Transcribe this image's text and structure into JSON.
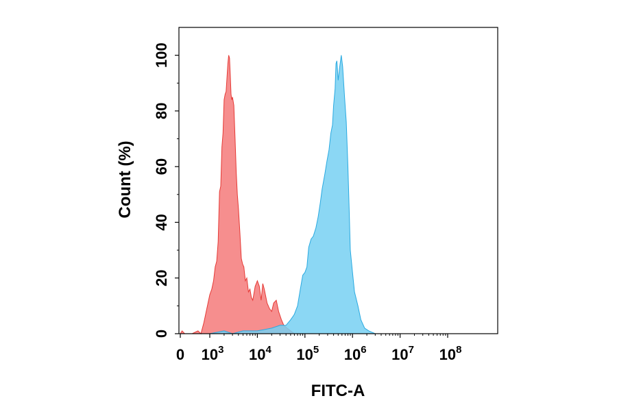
{
  "chart_data": {
    "type": "area",
    "title": "",
    "xlabel": "FITC-A",
    "ylabel": "Count (%)",
    "x_scale": "biexponential",
    "xlim": [
      -100,
      100000000
    ],
    "ylim": [
      0,
      110
    ],
    "grid": false,
    "x_ticks": [
      {
        "base": "0",
        "exp": "",
        "value": 0
      },
      {
        "base": "10",
        "exp": "3",
        "value": 1000
      },
      {
        "base": "10",
        "exp": "4",
        "value": 10000
      },
      {
        "base": "10",
        "exp": "5",
        "value": 100000
      },
      {
        "base": "10",
        "exp": "6",
        "value": 1000000
      },
      {
        "base": "10",
        "exp": "7",
        "value": 10000000
      },
      {
        "base": "10",
        "exp": "8",
        "value": 100000000
      }
    ],
    "y_ticks": [
      "0",
      "20",
      "40",
      "60",
      "80",
      "100"
    ],
    "series": [
      {
        "color": "#f47a7a",
        "stroke": "#e53935",
        "points": [
          [
            0,
            0
          ],
          [
            60,
            1
          ],
          [
            150,
            0
          ],
          [
            400,
            0
          ],
          [
            600,
            1
          ],
          [
            700,
            0
          ],
          [
            800,
            4
          ],
          [
            900,
            9
          ],
          [
            1000,
            14
          ],
          [
            1100,
            16
          ],
          [
            1200,
            19
          ],
          [
            1300,
            24
          ],
          [
            1400,
            26
          ],
          [
            1500,
            33
          ],
          [
            1600,
            51
          ],
          [
            1700,
            53
          ],
          [
            1800,
            67
          ],
          [
            1900,
            72
          ],
          [
            2000,
            84
          ],
          [
            2100,
            86
          ],
          [
            2200,
            87
          ],
          [
            2300,
            92
          ],
          [
            2400,
            97
          ],
          [
            2500,
            100
          ],
          [
            2600,
            99
          ],
          [
            2700,
            93
          ],
          [
            2800,
            86
          ],
          [
            2900,
            84
          ],
          [
            3000,
            85
          ],
          [
            3200,
            82
          ],
          [
            3400,
            70
          ],
          [
            3600,
            58
          ],
          [
            3800,
            50
          ],
          [
            4000,
            45
          ],
          [
            4300,
            36
          ],
          [
            4600,
            27
          ],
          [
            4900,
            25
          ],
          [
            5200,
            24
          ],
          [
            5600,
            19
          ],
          [
            6000,
            20
          ],
          [
            6500,
            15
          ],
          [
            7000,
            16
          ],
          [
            7500,
            13
          ],
          [
            8000,
            12
          ],
          [
            9000,
            17
          ],
          [
            10000,
            19
          ],
          [
            11000,
            17
          ],
          [
            12000,
            12
          ],
          [
            13000,
            18
          ],
          [
            14000,
            16
          ],
          [
            16000,
            11
          ],
          [
            18000,
            9
          ],
          [
            20000,
            8
          ],
          [
            22000,
            11
          ],
          [
            25000,
            12
          ],
          [
            28000,
            8
          ],
          [
            32000,
            5
          ],
          [
            36000,
            3
          ],
          [
            42000,
            2
          ],
          [
            50000,
            1
          ],
          [
            60000,
            0
          ]
        ]
      },
      {
        "color": "#77d0f2",
        "stroke": "#29a9e0",
        "points": [
          [
            1000,
            0
          ],
          [
            2000,
            1
          ],
          [
            3000,
            0
          ],
          [
            5000,
            1
          ],
          [
            10000,
            1
          ],
          [
            20000,
            2
          ],
          [
            30000,
            3
          ],
          [
            40000,
            3
          ],
          [
            50000,
            5
          ],
          [
            55000,
            6
          ],
          [
            60000,
            7
          ],
          [
            70000,
            10
          ],
          [
            80000,
            16
          ],
          [
            90000,
            21
          ],
          [
            100000,
            22
          ],
          [
            110000,
            24
          ],
          [
            120000,
            31
          ],
          [
            135000,
            34
          ],
          [
            150000,
            35
          ],
          [
            170000,
            38
          ],
          [
            190000,
            42
          ],
          [
            210000,
            47
          ],
          [
            230000,
            52
          ],
          [
            260000,
            57
          ],
          [
            290000,
            62
          ],
          [
            320000,
            66
          ],
          [
            350000,
            72
          ],
          [
            380000,
            75
          ],
          [
            400000,
            82
          ],
          [
            430000,
            88
          ],
          [
            450000,
            97
          ],
          [
            470000,
            98
          ],
          [
            500000,
            91
          ],
          [
            540000,
            96
          ],
          [
            580000,
            100
          ],
          [
            620000,
            96
          ],
          [
            680000,
            85
          ],
          [
            740000,
            76
          ],
          [
            800000,
            60
          ],
          [
            850000,
            45
          ],
          [
            900000,
            30
          ],
          [
            1000000,
            22
          ],
          [
            1100000,
            15
          ],
          [
            1300000,
            10
          ],
          [
            1500000,
            5
          ],
          [
            1800000,
            2
          ],
          [
            2200000,
            1
          ],
          [
            3000000,
            0
          ]
        ]
      }
    ]
  }
}
